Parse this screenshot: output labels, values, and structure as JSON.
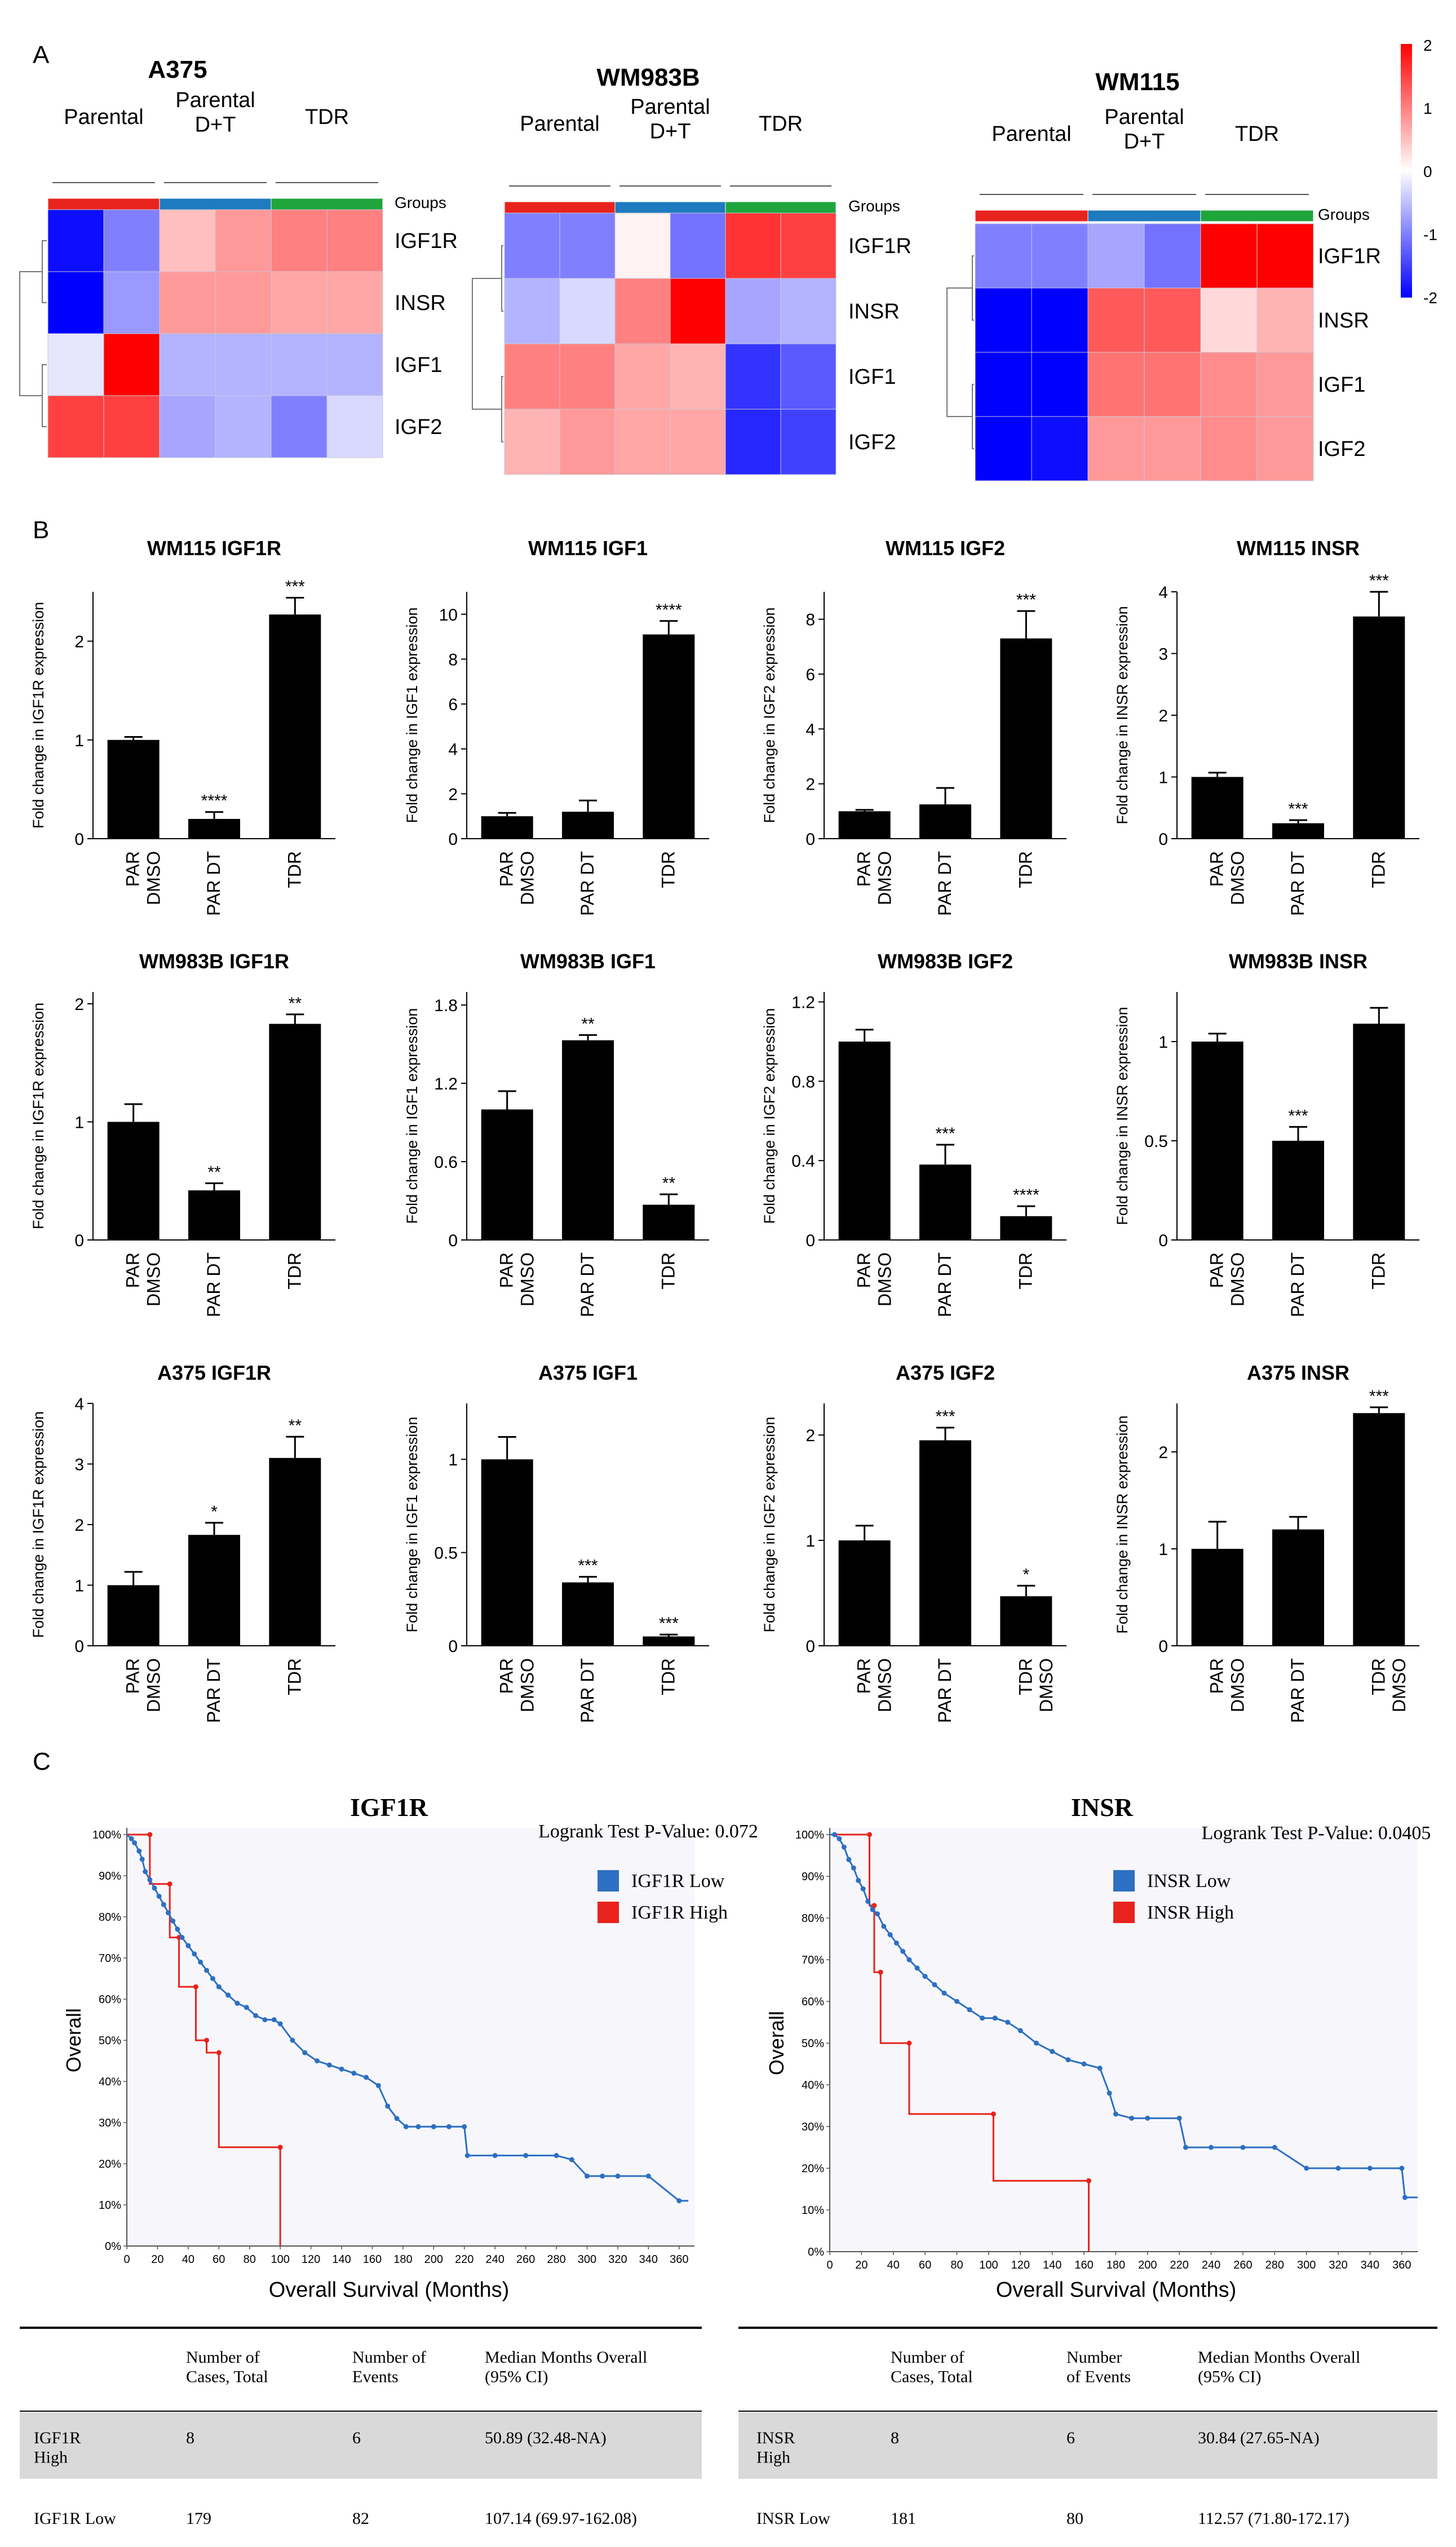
{
  "panel_labels": [
    "A",
    "B",
    "C"
  ],
  "heatmaps": {
    "groups_label": "Groups",
    "group_names": [
      "Parental",
      "Parental\nD+T",
      "TDR"
    ],
    "genes_note": "rows listed top to bottom",
    "colorbar": {
      "ticks": [
        "2",
        "1",
        "0",
        "-1",
        "-2"
      ],
      "min": -2,
      "max": 2
    },
    "maps": [
      {
        "title": "A375",
        "genes": [
          "IGF1R",
          "INSR",
          "IGF1",
          "IGF2"
        ],
        "values": [
          [
            -1.9,
            -1.0,
            0.5,
            0.8,
            1.0,
            1.0
          ],
          [
            -2.0,
            -0.8,
            0.8,
            0.8,
            0.7,
            0.7
          ],
          [
            -0.2,
            2.0,
            -0.6,
            -0.6,
            -0.6,
            -0.6
          ],
          [
            1.5,
            1.5,
            -0.7,
            -0.6,
            -1.0,
            -0.3
          ]
        ]
      },
      {
        "title": "WM983B",
        "genes": [
          "IGF1R",
          "INSR",
          "IGF1",
          "IGF2"
        ],
        "values": [
          [
            -1.0,
            -1.0,
            0.1,
            -1.1,
            1.6,
            1.5
          ],
          [
            -0.6,
            -0.3,
            1.0,
            2.0,
            -0.7,
            -0.6
          ],
          [
            1.0,
            1.0,
            0.7,
            0.6,
            -1.6,
            -1.3
          ],
          [
            0.6,
            0.8,
            0.7,
            0.7,
            -1.7,
            -1.5
          ]
        ]
      },
      {
        "title": "WM115",
        "genes": [
          "IGF1R",
          "INSR",
          "IGF1",
          "IGF2"
        ],
        "values": [
          [
            -1.0,
            -1.0,
            -0.7,
            -1.1,
            2.0,
            2.0
          ],
          [
            -2.0,
            -2.0,
            1.3,
            1.3,
            0.3,
            0.6
          ],
          [
            -2.0,
            -2.0,
            1.1,
            1.1,
            0.9,
            0.8
          ],
          [
            -2.0,
            -1.9,
            0.8,
            0.8,
            0.9,
            0.8
          ]
        ]
      }
    ]
  },
  "chart_data": [
    {
      "type": "bar",
      "title": "WM115 IGF1R",
      "ylabel": "Fold change in IGF1R expression",
      "categories": [
        "PAR\nDMSO",
        "PAR DT",
        "TDR"
      ],
      "values": [
        1.0,
        0.2,
        2.27
      ],
      "errors": [
        0.03,
        0.07,
        0.17
      ],
      "sig": [
        "",
        "****",
        "***"
      ],
      "ylim": [
        0,
        2.5
      ],
      "yticks": [
        0,
        1,
        2
      ],
      "ytick_labels": [
        "0",
        "1",
        "2"
      ]
    },
    {
      "type": "bar",
      "title": "WM115 IGF1",
      "ylabel": "Fold change in IGF1 expression",
      "categories": [
        "PAR\nDMSO",
        "PAR DT",
        "TDR"
      ],
      "values": [
        1.0,
        1.2,
        9.1
      ],
      "errors": [
        0.15,
        0.5,
        0.6
      ],
      "sig": [
        "",
        "",
        "****"
      ],
      "ylim": [
        0,
        11
      ],
      "yticks": [
        0,
        2,
        4,
        6,
        8,
        10
      ],
      "ytick_labels": [
        "0",
        "2",
        "4",
        "6",
        "8",
        "10"
      ]
    },
    {
      "type": "bar",
      "title": "WM115 IGF2",
      "ylabel": "Fold change in IGF2 expression",
      "categories": [
        "PAR\nDMSO",
        "PAR DT",
        "TDR"
      ],
      "values": [
        1.0,
        1.25,
        7.3
      ],
      "errors": [
        0.05,
        0.6,
        1.0
      ],
      "sig": [
        "",
        "",
        "***"
      ],
      "ylim": [
        0,
        9
      ],
      "yticks": [
        0,
        2,
        4,
        6,
        8
      ],
      "ytick_labels": [
        "0",
        "2",
        "4",
        "6",
        "8"
      ]
    },
    {
      "type": "bar",
      "title": "WM115 INSR",
      "ylabel": "Fold change in INSR expression",
      "categories": [
        "PAR\nDMSO",
        "PAR DT",
        "TDR"
      ],
      "values": [
        1.0,
        0.25,
        3.6
      ],
      "errors": [
        0.07,
        0.05,
        0.4
      ],
      "sig": [
        "",
        "***",
        "***"
      ],
      "ylim": [
        0,
        4
      ],
      "yticks": [
        0,
        1,
        2,
        3,
        4
      ],
      "ytick_labels": [
        "0",
        "1",
        "2",
        "3",
        "4"
      ]
    },
    {
      "type": "bar",
      "title": "WM983B IGF1R",
      "ylabel": "Fold change in IGF1R expression",
      "categories": [
        "PAR\nDMSO",
        "PAR DT",
        "TDR"
      ],
      "values": [
        1.0,
        0.42,
        1.83
      ],
      "errors": [
        0.15,
        0.06,
        0.08
      ],
      "sig": [
        "",
        "**",
        "**"
      ],
      "ylim": [
        0,
        2.1
      ],
      "yticks": [
        0,
        1,
        2
      ],
      "ytick_labels": [
        "0",
        "1",
        "2"
      ]
    },
    {
      "type": "bar",
      "title": "WM983B IGF1",
      "ylabel": "Fold change in IGF1 expression",
      "categories": [
        "PAR\nDMSO",
        "PAR DT",
        "TDR"
      ],
      "values": [
        1.0,
        1.53,
        0.27
      ],
      "errors": [
        0.14,
        0.04,
        0.08
      ],
      "sig": [
        "",
        "**",
        "**"
      ],
      "ylim": [
        0,
        1.9
      ],
      "yticks": [
        0,
        0.6,
        1.2,
        1.8
      ],
      "ytick_labels": [
        "0",
        "0.6",
        "1.2",
        "1.8"
      ]
    },
    {
      "type": "bar",
      "title": "WM983B IGF2",
      "ylabel": "Fold change in IGF2 expression",
      "categories": [
        "PAR\nDMSO",
        "PAR DT",
        "TDR"
      ],
      "values": [
        1.0,
        0.38,
        0.12
      ],
      "errors": [
        0.06,
        0.1,
        0.05
      ],
      "sig": [
        "",
        "***",
        "****"
      ],
      "ylim": [
        0,
        1.25
      ],
      "yticks": [
        0,
        0.4,
        0.8,
        1.2
      ],
      "ytick_labels": [
        "0",
        "0.4",
        "0.8",
        "1.2"
      ]
    },
    {
      "type": "bar",
      "title": "WM983B INSR",
      "ylabel": "Fold change in INSR expression",
      "categories": [
        "PAR\nDMSO",
        "PAR DT",
        "TDR"
      ],
      "values": [
        1.0,
        0.5,
        1.09
      ],
      "errors": [
        0.04,
        0.07,
        0.08
      ],
      "sig": [
        "",
        "***",
        ""
      ],
      "ylim": [
        0,
        1.25
      ],
      "yticks": [
        0,
        0.5,
        1
      ],
      "ytick_labels": [
        "0",
        "0.5",
        "1"
      ]
    },
    {
      "type": "bar",
      "title": "A375 IGF1R",
      "ylabel": "Fold change in IGF1R expression",
      "categories": [
        "PAR\nDMSO",
        "PAR DT",
        "TDR"
      ],
      "values": [
        1.0,
        1.83,
        3.1
      ],
      "errors": [
        0.22,
        0.2,
        0.35
      ],
      "sig": [
        "",
        "*",
        "**"
      ],
      "ylim": [
        0,
        4
      ],
      "yticks": [
        0,
        1,
        2,
        3,
        4
      ],
      "ytick_labels": [
        "0",
        "1",
        "2",
        "3",
        "4"
      ]
    },
    {
      "type": "bar",
      "title": "A375 IGF1",
      "ylabel": "Fold change in IGF1 expression",
      "categories": [
        "PAR\nDMSO",
        "PAR DT",
        "TDR"
      ],
      "values": [
        1.0,
        0.34,
        0.05
      ],
      "errors": [
        0.12,
        0.03,
        0.01
      ],
      "sig": [
        "",
        "***",
        "***"
      ],
      "ylim": [
        0,
        1.3
      ],
      "yticks": [
        0,
        0.5,
        1
      ],
      "ytick_labels": [
        "0",
        "0.5",
        "1"
      ]
    },
    {
      "type": "bar",
      "title": "A375 IGF2",
      "ylabel": "Fold change in IGF2 expression",
      "categories": [
        "PAR\nDMSO",
        "PAR DT",
        "TDR\nDMSO"
      ],
      "values": [
        1.0,
        1.95,
        0.47
      ],
      "errors": [
        0.14,
        0.12,
        0.1
      ],
      "sig": [
        "",
        "***",
        "*"
      ],
      "ylim": [
        0,
        2.3
      ],
      "yticks": [
        0,
        1,
        2
      ],
      "ytick_labels": [
        "0",
        "1",
        "2"
      ]
    },
    {
      "type": "bar",
      "title": "A375 INSR",
      "ylabel": "Fold change in INSR expression",
      "categories": [
        "PAR\nDMSO",
        "PAR DT",
        "TDR\nDMSO"
      ],
      "values": [
        1.0,
        1.2,
        2.4
      ],
      "errors": [
        0.28,
        0.13,
        0.06
      ],
      "sig": [
        "",
        "",
        "***"
      ],
      "ylim": [
        0,
        2.5
      ],
      "yticks": [
        0,
        1,
        2
      ],
      "ytick_labels": [
        "0",
        "1",
        "2"
      ]
    },
    {
      "type": "line",
      "title": "IGF1R",
      "xlabel": "Overall Survival (Months)",
      "ylabel": "Overall",
      "xlim": [
        0,
        370
      ],
      "ylim": [
        0,
        100
      ],
      "xticks": [
        0,
        20,
        40,
        60,
        80,
        100,
        120,
        140,
        160,
        180,
        200,
        220,
        240,
        260,
        280,
        300,
        320,
        340,
        360
      ],
      "yticks": [
        0,
        10,
        20,
        30,
        40,
        50,
        60,
        70,
        80,
        90,
        100
      ],
      "pvalue_label": "Logrank Test P-Value: 0.072",
      "series": [
        {
          "name": "IGF1R High",
          "color": "#e8231d",
          "x": [
            0,
            15,
            15,
            28,
            28,
            34,
            34,
            45,
            45,
            52,
            52,
            60,
            60,
            100,
            100
          ],
          "y": [
            100,
            100,
            88,
            88,
            75,
            75,
            63,
            63,
            50,
            50,
            47,
            47,
            24,
            24,
            0
          ]
        },
        {
          "name": "IGF1R Low",
          "color": "#2d6fc2",
          "x": [
            0,
            3,
            5,
            8,
            10,
            12,
            15,
            18,
            21,
            24,
            27,
            30,
            33,
            36,
            40,
            44,
            48,
            52,
            56,
            60,
            66,
            72,
            78,
            84,
            90,
            96,
            100,
            108,
            116,
            124,
            132,
            140,
            148,
            156,
            164,
            170,
            176,
            182,
            190,
            200,
            210,
            220,
            222,
            240,
            260,
            280,
            290,
            300,
            310,
            320,
            340,
            360,
            366
          ],
          "y": [
            100,
            99,
            98,
            96,
            94,
            91,
            89,
            87,
            85,
            83,
            81,
            79,
            77,
            75,
            73,
            71,
            69,
            67,
            65,
            63,
            61,
            59,
            58,
            56,
            55,
            55,
            54,
            50,
            47,
            45,
            44,
            43,
            42,
            41,
            39,
            34,
            31,
            29,
            29,
            29,
            29,
            29,
            22,
            22,
            22,
            22,
            21,
            17,
            17,
            17,
            17,
            11,
            11
          ]
        }
      ]
    },
    {
      "type": "line",
      "title": "INSR",
      "xlabel": "Overall Survival (Months)",
      "ylabel": "Overall",
      "xlim": [
        0,
        370
      ],
      "ylim": [
        0,
        100
      ],
      "xticks": [
        0,
        20,
        40,
        60,
        80,
        100,
        120,
        140,
        160,
        180,
        200,
        220,
        240,
        260,
        280,
        300,
        320,
        340,
        360
      ],
      "yticks": [
        0,
        10,
        20,
        30,
        40,
        50,
        60,
        70,
        80,
        90,
        100
      ],
      "pvalue_label": "Logrank Test P-Value: 0.0405",
      "series": [
        {
          "name": "INSR High",
          "color": "#e8231d",
          "x": [
            0,
            25,
            25,
            28,
            28,
            32,
            32,
            50,
            50,
            103,
            103,
            163,
            163
          ],
          "y": [
            100,
            100,
            83,
            83,
            67,
            67,
            50,
            50,
            33,
            33,
            17,
            17,
            0
          ]
        },
        {
          "name": "INSR Low",
          "color": "#2d6fc2",
          "x": [
            0,
            3,
            6,
            9,
            12,
            15,
            18,
            21,
            24,
            27,
            30,
            34,
            38,
            42,
            46,
            50,
            55,
            60,
            66,
            72,
            80,
            88,
            96,
            104,
            112,
            120,
            130,
            140,
            150,
            160,
            170,
            176,
            180,
            190,
            200,
            220,
            224,
            240,
            260,
            280,
            300,
            320,
            340,
            360,
            362,
            370
          ],
          "y": [
            100,
            100,
            99,
            97,
            94,
            92,
            89,
            87,
            84,
            82,
            81,
            78,
            76,
            74,
            72,
            70,
            68,
            66,
            64,
            62,
            60,
            58,
            56,
            56,
            55,
            53,
            50,
            48,
            46,
            45,
            44,
            38,
            33,
            32,
            32,
            32,
            25,
            25,
            25,
            25,
            20,
            20,
            20,
            20,
            13,
            13
          ]
        }
      ]
    }
  ],
  "km_tables": [
    {
      "headers": [
        "",
        "Number of\nCases, Total",
        "Number of\nEvents",
        "Median Months Overall\n(95% CI)"
      ],
      "rows": [
        [
          "IGF1R\nHigh",
          "8",
          "6",
          "50.89 (32.48-NA)"
        ],
        [
          "IGF1R Low",
          "179",
          "82",
          "107.14 (69.97-162.08)"
        ]
      ]
    },
    {
      "headers": [
        "",
        "Number of\nCases, Total",
        "Number\nof Events",
        "Median Months Overall\n(95% CI)"
      ],
      "rows": [
        [
          "INSR\nHigh",
          "8",
          "6",
          "30.84 (27.65-NA)"
        ],
        [
          "INSR Low",
          "181",
          "80",
          "112.57 (71.80-172.17)"
        ]
      ]
    }
  ]
}
